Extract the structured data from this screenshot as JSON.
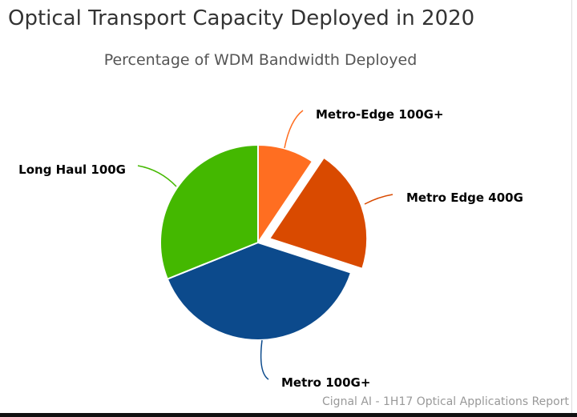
{
  "chart_data": {
    "type": "pie",
    "title": "Optical Transport Capacity Deployed in 2020",
    "subtitle": "Percentage of WDM Bandwidth Deployed",
    "credit": "Cignal AI - 1H17 Optical Applications Report",
    "slices": [
      {
        "label": "Metro-Edge 100G+",
        "value": 9.4,
        "color": "#ff6e21",
        "exploded": false
      },
      {
        "label": "Metro Edge 400G",
        "value": 20.6,
        "color": "#d94a00",
        "exploded": true
      },
      {
        "label": "Metro 100G+",
        "value": 38.9,
        "color": "#0c4a8c",
        "exploded": false
      },
      {
        "label": "Long Haul 100G",
        "value": 31.1,
        "color": "#44b800",
        "exploded": false
      }
    ]
  }
}
